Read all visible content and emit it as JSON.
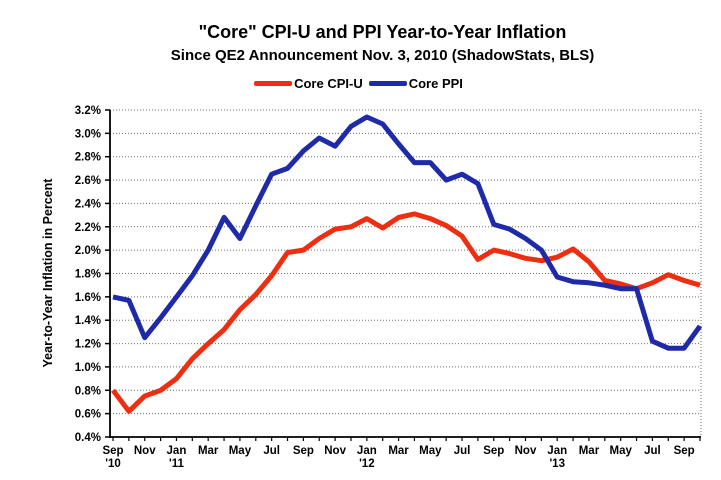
{
  "title": "\"Core\" CPI-U and PPI Year-to-Year Inflation",
  "subtitle": "Since QE2 Announcement Nov. 3, 2010 (ShadowStats, BLS)",
  "y_axis_title": "Year-to-Year Inflation in Percent",
  "legend": [
    {
      "label": "Core CPI-U",
      "color": "#ee2e10"
    },
    {
      "label": "Core PPI",
      "color": "#1f2aa8"
    }
  ],
  "colors": {
    "gridline": "#6e6e6e",
    "axis": "#000000"
  },
  "chart_data": {
    "type": "line",
    "title": "\"Core\" CPI-U and PPI Year-to-Year Inflation",
    "subtitle": "Since QE2 Announcement Nov. 3, 2010 (ShadowStats, BLS)",
    "xlabel": "",
    "ylabel": "Year-to-Year Inflation in Percent",
    "ylim": [
      0.4,
      3.2
    ],
    "ytick_step": 0.2,
    "grid": true,
    "legend_position": "top",
    "x": [
      "Sep '10",
      "Oct '10",
      "Nov '10",
      "Dec '10",
      "Jan '11",
      "Feb '11",
      "Mar '11",
      "Apr '11",
      "May '11",
      "Jun '11",
      "Jul '11",
      "Aug '11",
      "Sep '11",
      "Oct '11",
      "Nov '11",
      "Dec '11",
      "Jan '12",
      "Feb '12",
      "Mar '12",
      "Apr '12",
      "May '12",
      "Jun '12",
      "Jul '12",
      "Aug '12",
      "Sep '12",
      "Oct '12",
      "Nov '12",
      "Dec '12",
      "Jan '13",
      "Feb '13",
      "Mar '13",
      "Apr '13",
      "May '13",
      "Jun '13",
      "Jul '13",
      "Aug '13",
      "Sep '13",
      "Oct '13"
    ],
    "xtick_labels": [
      {
        "top": "Sep",
        "sub": "'10"
      },
      {
        "top": "Nov"
      },
      {
        "top": "Jan",
        "sub": "'11"
      },
      {
        "top": "Mar"
      },
      {
        "top": "May"
      },
      {
        "top": "Jul"
      },
      {
        "top": "Sep"
      },
      {
        "top": "Nov"
      },
      {
        "top": "Jan",
        "sub": "'12"
      },
      {
        "top": "Mar"
      },
      {
        "top": "May"
      },
      {
        "top": "Jul"
      },
      {
        "top": "Sep"
      },
      {
        "top": "Nov"
      },
      {
        "top": "Jan",
        "sub": "'13"
      },
      {
        "top": "Mar"
      },
      {
        "top": "May"
      },
      {
        "top": "Jul"
      },
      {
        "top": "Sep"
      }
    ],
    "series": [
      {
        "name": "Core CPI-U",
        "color": "#ee2e10",
        "values": [
          0.8,
          0.62,
          0.75,
          0.8,
          0.9,
          1.07,
          1.2,
          1.32,
          1.49,
          1.62,
          1.78,
          1.98,
          2.0,
          2.1,
          2.18,
          2.2,
          2.27,
          2.19,
          2.28,
          2.31,
          2.27,
          2.21,
          2.12,
          1.92,
          2.0,
          1.97,
          1.93,
          1.91,
          1.94,
          2.01,
          1.9,
          1.74,
          1.71,
          1.67,
          1.72,
          1.79,
          1.74,
          1.7
        ]
      },
      {
        "name": "Core PPI",
        "color": "#1f2aa8",
        "values": [
          1.6,
          1.57,
          1.25,
          1.42,
          1.6,
          1.78,
          2.0,
          2.28,
          2.1,
          2.38,
          2.65,
          2.7,
          2.85,
          2.96,
          2.89,
          3.06,
          3.14,
          3.08,
          2.91,
          2.75,
          2.75,
          2.6,
          2.65,
          2.57,
          2.22,
          2.18,
          2.1,
          2.0,
          1.77,
          1.73,
          1.72,
          1.7,
          1.67,
          1.67,
          1.22,
          1.16,
          1.16,
          1.35
        ]
      }
    ]
  }
}
